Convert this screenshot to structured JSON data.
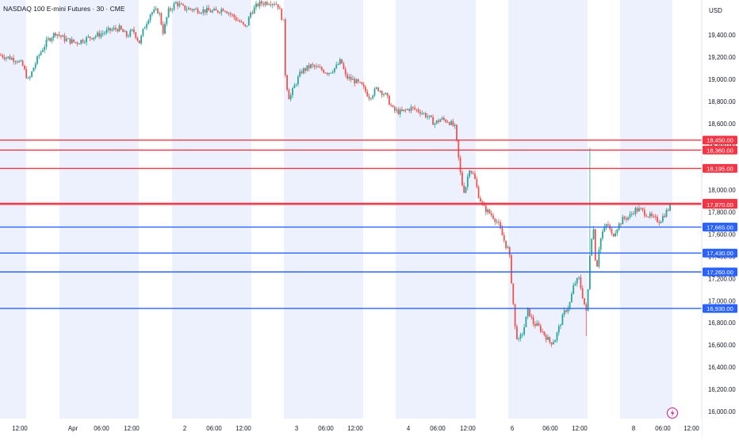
{
  "header": {
    "title": "NASDAQ 100 E-mini Futures · 30 · CME",
    "currency": "USD"
  },
  "colors": {
    "up": "#26a69a",
    "down": "#ef5350",
    "resistance": "#f23645",
    "support": "#2962ff",
    "session_band": "#ecf1fd",
    "axis_text": "#131722"
  },
  "icons": {
    "bolt_button": "lightning-bolt-icon"
  },
  "chart_data": {
    "type": "candlestick",
    "title": "NASDAQ 100 E-mini Futures · 30 · CME",
    "y_axis": {
      "ticks": [
        16000,
        16200,
        16400,
        16600,
        16800,
        17000,
        17200,
        17400,
        17600,
        17800,
        18000,
        18200,
        18400,
        18600,
        18800,
        19000,
        19200,
        19400
      ],
      "tick_labels": [
        "16,000.00",
        "16,200.00",
        "16,400.00",
        "16,600.00",
        "16,800.00",
        "17,000.00",
        "17,200.00",
        "17,400.00",
        "17,600.00",
        "17,800.00",
        "18,000.00",
        "18,200.00",
        "18,400.00",
        "18,600.00",
        "18,800.00",
        "19,000.00",
        "19,200.00",
        "19,400.00"
      ],
      "ylim": [
        15960,
        19650
      ]
    },
    "x_axis": {
      "labels": [
        "12:00",
        "Apr",
        "06:00",
        "12:00",
        "2",
        "06:00",
        "12:00",
        "3",
        "06:00",
        "12:00",
        "4",
        "06:00",
        "12:00",
        "6",
        "06:00",
        "12:00",
        "8",
        "06:00",
        "12:00"
      ]
    },
    "resistance_levels": [
      {
        "value": 18450,
        "label": "18,450.00"
      },
      {
        "value": 18360,
        "label": "18,360.00"
      },
      {
        "value": 18195,
        "label": "18,195.00"
      },
      {
        "value": 17880,
        "label": "17,880.00"
      },
      {
        "value": 17870,
        "label": "17,870.00"
      }
    ],
    "support_levels": [
      {
        "value": 17665,
        "label": "17,665.00"
      },
      {
        "value": 17430,
        "label": "17,430.00"
      },
      {
        "value": 17260,
        "label": "17,260.00"
      },
      {
        "value": 16930,
        "label": "16,930.00"
      }
    ],
    "price_path": [
      [
        0,
        19220
      ],
      [
        8,
        19200
      ],
      [
        20,
        19180
      ],
      [
        28,
        19130
      ],
      [
        36,
        18980
      ],
      [
        42,
        19100
      ],
      [
        50,
        19230
      ],
      [
        60,
        19350
      ],
      [
        70,
        19420
      ],
      [
        82,
        19360
      ],
      [
        96,
        19330
      ],
      [
        110,
        19370
      ],
      [
        124,
        19400
      ],
      [
        138,
        19440
      ],
      [
        150,
        19460
      ],
      [
        160,
        19390
      ],
      [
        168,
        19440
      ],
      [
        176,
        19330
      ],
      [
        182,
        19470
      ],
      [
        190,
        19600
      ],
      [
        200,
        19620
      ],
      [
        206,
        19420
      ],
      [
        212,
        19610
      ],
      [
        222,
        19690
      ],
      [
        232,
        19640
      ],
      [
        244,
        19630
      ],
      [
        258,
        19620
      ],
      [
        272,
        19610
      ],
      [
        282,
        19640
      ],
      [
        292,
        19580
      ],
      [
        302,
        19520
      ],
      [
        310,
        19460
      ],
      [
        316,
        19600
      ],
      [
        326,
        19680
      ],
      [
        340,
        19700
      ],
      [
        350,
        19680
      ],
      [
        358,
        19500
      ],
      [
        360,
        19000
      ],
      [
        365,
        18820
      ],
      [
        372,
        18950
      ],
      [
        380,
        19070
      ],
      [
        392,
        19120
      ],
      [
        404,
        19090
      ],
      [
        414,
        19060
      ],
      [
        424,
        19110
      ],
      [
        430,
        19170
      ],
      [
        436,
        19020
      ],
      [
        446,
        18990
      ],
      [
        456,
        18940
      ],
      [
        466,
        18840
      ],
      [
        476,
        18920
      ],
      [
        486,
        18860
      ],
      [
        496,
        18720
      ],
      [
        506,
        18700
      ],
      [
        518,
        18740
      ],
      [
        530,
        18710
      ],
      [
        540,
        18660
      ],
      [
        548,
        18600
      ],
      [
        556,
        18640
      ],
      [
        566,
        18620
      ],
      [
        574,
        18560
      ],
      [
        578,
        18300
      ],
      [
        582,
        18070
      ],
      [
        586,
        17980
      ],
      [
        592,
        18200
      ],
      [
        598,
        18120
      ],
      [
        604,
        17940
      ],
      [
        610,
        17840
      ],
      [
        616,
        17800
      ],
      [
        622,
        17760
      ],
      [
        628,
        17700
      ],
      [
        634,
        17580
      ],
      [
        638,
        17500
      ],
      [
        642,
        17450
      ],
      [
        646,
        17090
      ],
      [
        650,
        16720
      ],
      [
        654,
        16630
      ],
      [
        660,
        16730
      ],
      [
        666,
        16920
      ],
      [
        672,
        16800
      ],
      [
        680,
        16760
      ],
      [
        688,
        16680
      ],
      [
        694,
        16620
      ],
      [
        700,
        16650
      ],
      [
        706,
        16780
      ],
      [
        712,
        16900
      ],
      [
        718,
        16960
      ],
      [
        724,
        17150
      ],
      [
        730,
        17200
      ],
      [
        736,
        17000
      ],
      [
        740,
        16870
      ],
      [
        744,
        17440
      ],
      [
        748,
        17700
      ],
      [
        752,
        17250
      ],
      [
        756,
        17520
      ],
      [
        760,
        17620
      ],
      [
        766,
        17700
      ],
      [
        772,
        17580
      ],
      [
        778,
        17660
      ],
      [
        786,
        17740
      ],
      [
        794,
        17760
      ],
      [
        800,
        17820
      ],
      [
        808,
        17820
      ],
      [
        816,
        17780
      ],
      [
        824,
        17740
      ],
      [
        832,
        17720
      ],
      [
        840,
        17800
      ],
      [
        846,
        17860
      ]
    ],
    "grid": false,
    "legend": "none"
  }
}
